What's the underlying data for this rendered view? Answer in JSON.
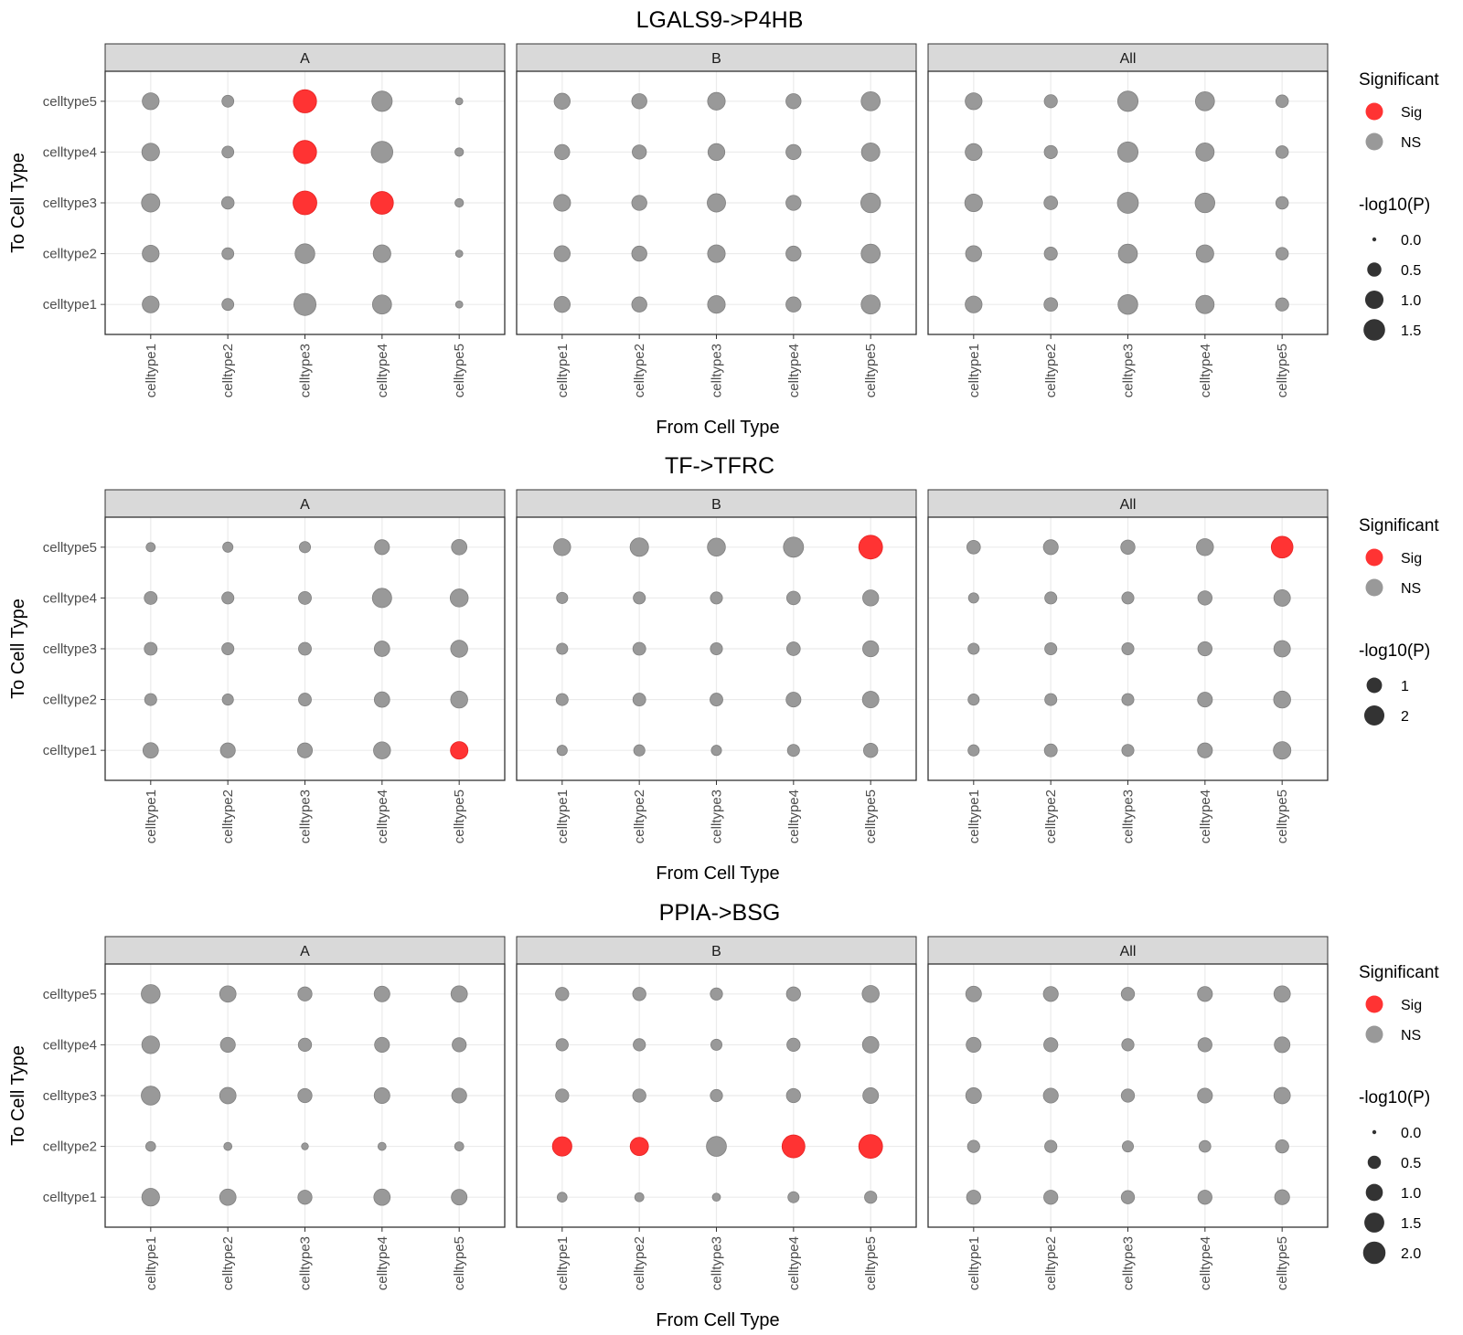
{
  "chart_data": [
    {
      "type": "scatter",
      "title": "LGALS9->P4HB",
      "xlabel": "From Cell Type",
      "ylabel": "To Cell Type",
      "x_categories": [
        "celltype1",
        "celltype2",
        "celltype3",
        "celltype4",
        "celltype5"
      ],
      "y_categories": [
        "celltype1",
        "celltype2",
        "celltype3",
        "celltype4",
        "celltype5"
      ],
      "facets": [
        "A",
        "B",
        "All"
      ],
      "size_legend": {
        "title": "-log10(P)",
        "breaks": [
          0.0,
          0.5,
          1.0,
          1.5
        ],
        "labels": [
          "0.0",
          "0.5",
          "1.0",
          "1.5"
        ],
        "max": 1.9
      },
      "color_legend": {
        "title": "Significant",
        "entries": [
          {
            "label": "Sig",
            "color": "#ff3333"
          },
          {
            "label": "NS",
            "color": "#999999"
          }
        ]
      },
      "panels": [
        {
          "facet": "A",
          "neglog10p": [
            [
              0.8,
              0.3,
              1.6,
              1.1,
              0.05
            ],
            [
              0.8,
              0.3,
              1.2,
              0.9,
              0.05
            ],
            [
              1.0,
              0.35,
              1.9,
              1.7,
              0.1
            ],
            [
              0.9,
              0.3,
              1.8,
              1.5,
              0.1
            ],
            [
              0.8,
              0.3,
              1.8,
              1.3,
              0.05
            ]
          ],
          "significant": [
            [
              0,
              0,
              0,
              0,
              0
            ],
            [
              0,
              0,
              0,
              0,
              0
            ],
            [
              0,
              0,
              1,
              1,
              0
            ],
            [
              0,
              0,
              1,
              0,
              0
            ],
            [
              0,
              0,
              1,
              0,
              0
            ]
          ]
        },
        {
          "facet": "B",
          "neglog10p": [
            [
              0.7,
              0.6,
              0.9,
              0.6,
              1.1
            ],
            [
              0.7,
              0.6,
              0.9,
              0.6,
              1.1
            ],
            [
              0.8,
              0.6,
              1.0,
              0.6,
              1.2
            ],
            [
              0.6,
              0.5,
              0.8,
              0.6,
              1.0
            ],
            [
              0.7,
              0.6,
              0.9,
              0.6,
              1.1
            ]
          ],
          "significant": [
            [
              0,
              0,
              0,
              0,
              0
            ],
            [
              0,
              0,
              0,
              0,
              0
            ],
            [
              0,
              0,
              0,
              0,
              0
            ],
            [
              0,
              0,
              0,
              0,
              0
            ],
            [
              0,
              0,
              0,
              0,
              0
            ]
          ]
        },
        {
          "facet": "All",
          "neglog10p": [
            [
              0.8,
              0.45,
              1.2,
              1.0,
              0.4
            ],
            [
              0.7,
              0.4,
              1.1,
              0.9,
              0.35
            ],
            [
              0.9,
              0.45,
              1.4,
              1.2,
              0.35
            ],
            [
              0.8,
              0.4,
              1.3,
              1.0,
              0.35
            ],
            [
              0.8,
              0.4,
              1.3,
              1.1,
              0.35
            ]
          ],
          "significant": [
            [
              0,
              0,
              0,
              0,
              0
            ],
            [
              0,
              0,
              0,
              0,
              0
            ],
            [
              0,
              0,
              0,
              0,
              0
            ],
            [
              0,
              0,
              0,
              0,
              0
            ],
            [
              0,
              0,
              0,
              0,
              0
            ]
          ]
        }
      ]
    },
    {
      "type": "scatter",
      "title": "TF->TFRC",
      "xlabel": "From Cell Type",
      "ylabel": "To Cell Type",
      "x_categories": [
        "celltype1",
        "celltype2",
        "celltype3",
        "celltype4",
        "celltype5"
      ],
      "y_categories": [
        "celltype1",
        "celltype2",
        "celltype3",
        "celltype4",
        "celltype5"
      ],
      "facets": [
        "A",
        "B",
        "All"
      ],
      "size_legend": {
        "title": "-log10(P)",
        "breaks": [
          1,
          2
        ],
        "labels": [
          "1",
          "2"
        ],
        "max": 3.0
      },
      "color_legend": {
        "title": "Significant",
        "entries": [
          {
            "label": "Sig",
            "color": "#ff3333"
          },
          {
            "label": "NS",
            "color": "#999999"
          }
        ]
      },
      "panels": [
        {
          "facet": "A",
          "neglog10p": [
            [
              1.0,
              0.9,
              0.9,
              1.3,
              1.4
            ],
            [
              0.5,
              0.4,
              0.6,
              1.0,
              1.3
            ],
            [
              0.6,
              0.5,
              0.6,
              1.0,
              1.3
            ],
            [
              0.6,
              0.5,
              0.6,
              1.8,
              1.5
            ],
            [
              0.2,
              0.3,
              0.4,
              0.9,
              1.0
            ]
          ],
          "significant": [
            [
              0,
              0,
              0,
              0,
              1
            ],
            [
              0,
              0,
              0,
              0,
              0
            ],
            [
              0,
              0,
              0,
              0,
              0
            ],
            [
              0,
              0,
              0,
              0,
              0
            ],
            [
              0,
              0,
              0,
              0,
              0
            ]
          ]
        },
        {
          "facet": "B",
          "neglog10p": [
            [
              0.3,
              0.4,
              0.3,
              0.5,
              0.8
            ],
            [
              0.5,
              0.6,
              0.6,
              0.9,
              1.2
            ],
            [
              0.4,
              0.6,
              0.5,
              0.7,
              1.1
            ],
            [
              0.4,
              0.5,
              0.5,
              0.7,
              1.1
            ],
            [
              1.3,
              1.6,
              1.5,
              2.0,
              3.0
            ]
          ],
          "significant": [
            [
              0,
              0,
              0,
              0,
              0
            ],
            [
              0,
              0,
              0,
              0,
              0
            ],
            [
              0,
              0,
              0,
              0,
              0
            ],
            [
              0,
              0,
              0,
              0,
              0
            ],
            [
              0,
              0,
              0,
              0,
              1
            ]
          ]
        },
        {
          "facet": "All",
          "neglog10p": [
            [
              0.4,
              0.6,
              0.5,
              0.9,
              1.4
            ],
            [
              0.4,
              0.5,
              0.5,
              0.9,
              1.3
            ],
            [
              0.4,
              0.5,
              0.5,
              0.8,
              1.2
            ],
            [
              0.3,
              0.5,
              0.5,
              0.8,
              1.2
            ],
            [
              0.7,
              0.9,
              0.8,
              1.3,
              2.4
            ]
          ],
          "significant": [
            [
              0,
              0,
              0,
              0,
              0
            ],
            [
              0,
              0,
              0,
              0,
              0
            ],
            [
              0,
              0,
              0,
              0,
              0
            ],
            [
              0,
              0,
              0,
              0,
              0
            ],
            [
              0,
              0,
              0,
              0,
              1
            ]
          ]
        }
      ]
    },
    {
      "type": "scatter",
      "title": "PPIA->BSG",
      "xlabel": "From Cell Type",
      "ylabel": "To Cell Type",
      "x_categories": [
        "celltype1",
        "celltype2",
        "celltype3",
        "celltype4",
        "celltype5"
      ],
      "y_categories": [
        "celltype1",
        "celltype2",
        "celltype3",
        "celltype4",
        "celltype5"
      ],
      "facets": [
        "A",
        "B",
        "All"
      ],
      "size_legend": {
        "title": "-log10(P)",
        "breaks": [
          0.0,
          0.5,
          1.0,
          1.5,
          2.0
        ],
        "labels": [
          "0.0",
          "0.5",
          "1.0",
          "1.5",
          "2.0"
        ],
        "max": 2.3
      },
      "color_legend": {
        "title": "Significant",
        "entries": [
          {
            "label": "Sig",
            "color": "#ff3333"
          },
          {
            "label": "NS",
            "color": "#999999"
          }
        ]
      },
      "panels": [
        {
          "facet": "A",
          "neglog10p": [
            [
              1.1,
              0.9,
              0.6,
              0.9,
              0.8
            ],
            [
              0.2,
              0.1,
              0.05,
              0.1,
              0.15
            ],
            [
              1.3,
              0.9,
              0.6,
              0.8,
              0.7
            ],
            [
              1.1,
              0.7,
              0.5,
              0.7,
              0.6
            ],
            [
              1.3,
              0.9,
              0.6,
              0.8,
              0.9
            ]
          ],
          "significant": [
            [
              0,
              0,
              0,
              0,
              0
            ],
            [
              0,
              0,
              0,
              0,
              0
            ],
            [
              0,
              0,
              0,
              0,
              0
            ],
            [
              0,
              0,
              0,
              0,
              0
            ],
            [
              0,
              0,
              0,
              0,
              0
            ]
          ]
        },
        {
          "facet": "B",
          "neglog10p": [
            [
              0.2,
              0.15,
              0.1,
              0.3,
              0.4
            ],
            [
              1.4,
              1.2,
              1.5,
              2.1,
              2.3
            ],
            [
              0.5,
              0.5,
              0.4,
              0.6,
              0.8
            ],
            [
              0.4,
              0.4,
              0.3,
              0.5,
              0.9
            ],
            [
              0.5,
              0.5,
              0.4,
              0.6,
              1.0
            ]
          ],
          "significant": [
            [
              0,
              0,
              0,
              0,
              0
            ],
            [
              1,
              1,
              0,
              1,
              1
            ],
            [
              0,
              0,
              0,
              0,
              0
            ],
            [
              0,
              0,
              0,
              0,
              0
            ],
            [
              0,
              0,
              0,
              0,
              0
            ]
          ]
        },
        {
          "facet": "All",
          "neglog10p": [
            [
              0.6,
              0.6,
              0.5,
              0.6,
              0.7
            ],
            [
              0.4,
              0.4,
              0.3,
              0.35,
              0.5
            ],
            [
              0.8,
              0.7,
              0.5,
              0.7,
              0.9
            ],
            [
              0.7,
              0.6,
              0.4,
              0.6,
              0.8
            ],
            [
              0.8,
              0.7,
              0.5,
              0.7,
              0.9
            ]
          ],
          "significant": [
            [
              0,
              0,
              0,
              0,
              0
            ],
            [
              0,
              0,
              0,
              0,
              0
            ],
            [
              0,
              0,
              0,
              0,
              0
            ],
            [
              0,
              0,
              0,
              0,
              0
            ],
            [
              0,
              0,
              0,
              0,
              0
            ]
          ]
        }
      ]
    }
  ]
}
